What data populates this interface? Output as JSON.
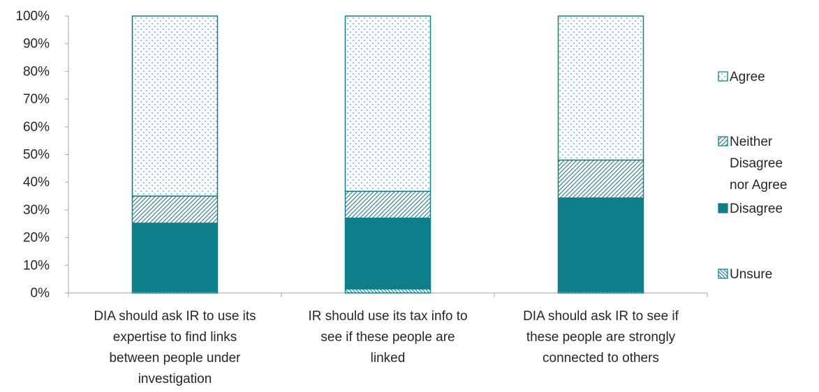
{
  "chart_data": {
    "type": "bar",
    "stacked": true,
    "title": "",
    "xlabel": "",
    "ylabel": "",
    "ylim": [
      0,
      100
    ],
    "y_ticks": [
      "0%",
      "10%",
      "20%",
      "30%",
      "40%",
      "50%",
      "60%",
      "70%",
      "80%",
      "90%",
      "100%"
    ],
    "categories": [
      [
        "DIA should ask IR to use its",
        "expertise to find links",
        "between people under",
        "investigation"
      ],
      [
        "IR should use its tax info to",
        "see if these people are",
        "linked"
      ],
      [
        "DIA should ask IR to see if",
        "these people are strongly",
        "connected to others"
      ]
    ],
    "series": [
      {
        "name": "Unsure",
        "values": [
          0.5,
          1.5,
          0.5
        ]
      },
      {
        "name": "Disagree",
        "values": [
          24.7,
          25.5,
          33.8
        ]
      },
      {
        "name": "Neither Disagree nor Agree",
        "values": [
          9.8,
          9.7,
          13.7
        ]
      },
      {
        "name": "Agree",
        "values": [
          65.0,
          63.3,
          52.0
        ]
      }
    ],
    "legend": {
      "placement": "right",
      "items": [
        {
          "series": "Agree",
          "lines": [
            "Agree"
          ]
        },
        {
          "series": "Neither Disagree nor Agree",
          "lines": [
            "Neither",
            "Disagree",
            "nor Agree"
          ]
        },
        {
          "series": "Disagree",
          "lines": [
            "Disagree"
          ]
        },
        {
          "series": "Unsure",
          "lines": [
            "Unsure"
          ]
        }
      ]
    },
    "colors": {
      "accent": "#0e7f8a",
      "axis": "#a6a6a6",
      "text": "#262626"
    },
    "grid": false
  }
}
